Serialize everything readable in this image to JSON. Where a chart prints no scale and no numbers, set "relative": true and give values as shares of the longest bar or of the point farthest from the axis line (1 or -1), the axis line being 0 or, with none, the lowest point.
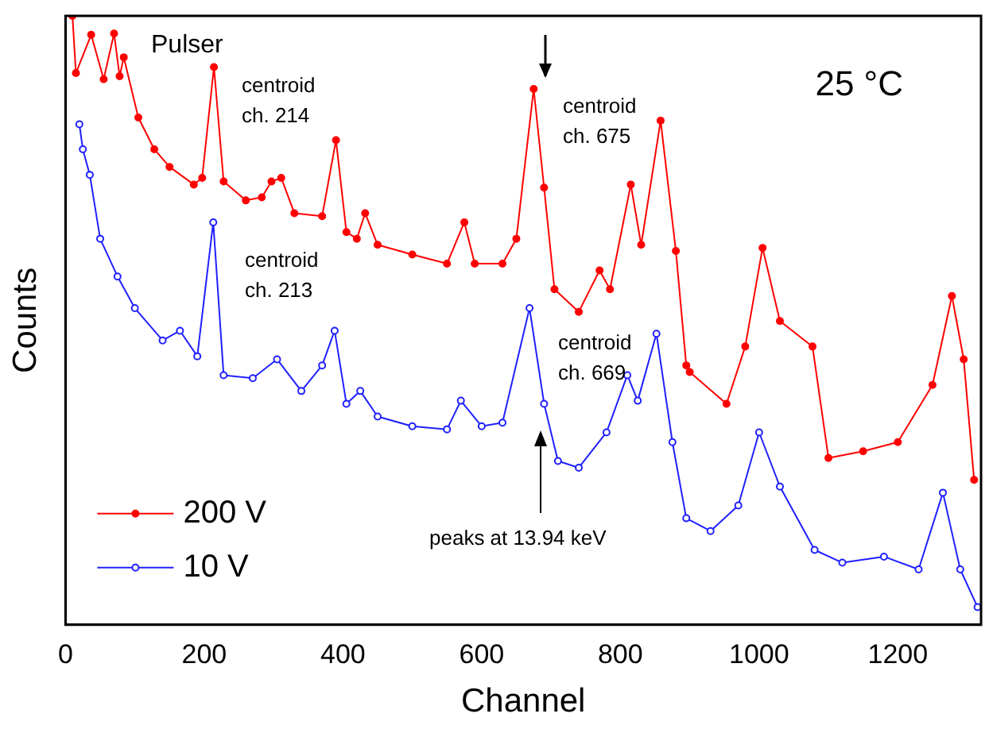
{
  "chart_data": {
    "type": "line",
    "xlabel": "Channel",
    "ylabel": "Counts",
    "relative": true,
    "xlim": [
      0,
      1320
    ],
    "xticks": [
      0,
      200,
      400,
      600,
      800,
      1000,
      1200
    ],
    "grid": false,
    "legend": "bottom left",
    "marker": "circle",
    "line_style": "solid",
    "series": [
      {
        "name": "200 V",
        "color": "#ff0000",
        "x": [
          10,
          15,
          37,
          55,
          70,
          78,
          84,
          105,
          128,
          150,
          185,
          197,
          214,
          228,
          260,
          283,
          297,
          311,
          330,
          370,
          390,
          405,
          420,
          432,
          450,
          500,
          550,
          575,
          590,
          630,
          650,
          675,
          690,
          705,
          740,
          770,
          785,
          815,
          830,
          858,
          880,
          895,
          900,
          953,
          980,
          1005,
          1030,
          1077,
          1100,
          1150,
          1200,
          1250,
          1278,
          1295,
          1310
        ],
        "values": [
          1,
          0.906,
          0.969,
          0.896,
          0.971,
          0.901,
          0.932,
          0.833,
          0.781,
          0.752,
          0.723,
          0.734,
          0.916,
          0.728,
          0.697,
          0.702,
          0.728,
          0.734,
          0.676,
          0.671,
          0.796,
          0.645,
          0.634,
          0.676,
          0.624,
          0.608,
          0.593,
          0.661,
          0.593,
          0.593,
          0.634,
          0.88,
          0.718,
          0.551,
          0.514,
          0.582,
          0.551,
          0.723,
          0.624,
          0.828,
          0.614,
          0.426,
          0.415,
          0.363,
          0.457,
          0.619,
          0.499,
          0.457,
          0.274,
          0.285,
          0.3,
          0.394,
          0.54,
          0.436,
          0.238
        ]
      },
      {
        "name": "10 V",
        "color": "#2020ff",
        "x": [
          20,
          25,
          35,
          50,
          75,
          100,
          140,
          165,
          190,
          213,
          228,
          270,
          305,
          340,
          370,
          388,
          405,
          425,
          450,
          500,
          550,
          570,
          600,
          630,
          669,
          690,
          710,
          740,
          780,
          810,
          825,
          852,
          875,
          895,
          930,
          970,
          1000,
          1030,
          1080,
          1120,
          1180,
          1230,
          1265,
          1290,
          1315
        ],
        "values": [
          0.822,
          0.781,
          0.739,
          0.634,
          0.572,
          0.52,
          0.467,
          0.483,
          0.441,
          0.661,
          0.41,
          0.405,
          0.436,
          0.384,
          0.426,
          0.483,
          0.363,
          0.384,
          0.342,
          0.326,
          0.321,
          0.368,
          0.326,
          0.332,
          0.52,
          0.363,
          0.269,
          0.258,
          0.316,
          0.41,
          0.368,
          0.478,
          0.3,
          0.175,
          0.154,
          0.196,
          0.316,
          0.227,
          0.123,
          0.102,
          0.112,
          0.091,
          0.217,
          0.091,
          0.029
        ]
      }
    ],
    "annotations": [
      "25 °C",
      "Pulser",
      "centroid\nch. 214",
      "centroid\nch. 675",
      "centroid\nch. 213",
      "centroid\nch. 669",
      "peaks at 13.94 keV"
    ]
  }
}
